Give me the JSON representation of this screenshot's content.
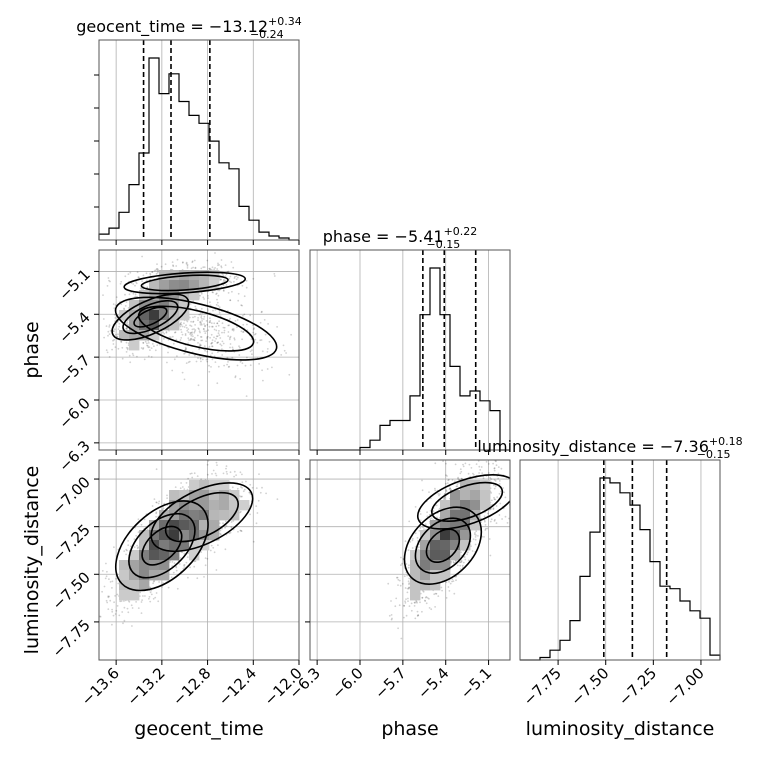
{
  "chart_data": {
    "type": "corner",
    "parameters": [
      "geocent_time",
      "phase",
      "luminosity_distance"
    ],
    "titles": [
      {
        "param": "geocent_time",
        "prefix": "geocent_time = ",
        "median": "−13.12",
        "plus": "+0.34",
        "minus": "−0.24"
      },
      {
        "param": "phase",
        "prefix": "phase = ",
        "median": "−5.41",
        "plus": "+0.22",
        "minus": "−0.15"
      },
      {
        "param": "luminosity_distance",
        "prefix": "luminosity_distance = ",
        "median": "−7.36",
        "plus": "+0.18",
        "minus": "−0.15"
      }
    ],
    "ranges": {
      "geocent_time": [
        -13.75,
        -12.0
      ],
      "phase": [
        -6.35,
        -4.95
      ],
      "luminosity_distance": [
        -7.95,
        -6.9
      ]
    },
    "ticks": {
      "geocent_time": [
        {
          "v": -13.6,
          "label": "−13.6"
        },
        {
          "v": -13.2,
          "label": "−13.2"
        },
        {
          "v": -12.8,
          "label": "−12.8"
        },
        {
          "v": -12.4,
          "label": "−12.4"
        },
        {
          "v": -12.0,
          "label": "−12.0"
        }
      ],
      "phase": [
        {
          "v": -6.3,
          "label": "−6.3"
        },
        {
          "v": -6.0,
          "label": "−6.0"
        },
        {
          "v": -5.7,
          "label": "−5.7"
        },
        {
          "v": -5.4,
          "label": "−5.4"
        },
        {
          "v": -5.1,
          "label": "−5.1"
        }
      ],
      "luminosity_distance": [
        {
          "v": -7.75,
          "label": "−7.75"
        },
        {
          "v": -7.5,
          "label": "−7.50"
        },
        {
          "v": -7.25,
          "label": "−7.25"
        },
        {
          "v": -7.0,
          "label": "−7.00"
        }
      ]
    },
    "quantiles": {
      "geocent_time": [
        -13.36,
        -13.12,
        -12.78
      ],
      "phase": [
        -5.56,
        -5.41,
        -5.19
      ],
      "luminosity_distance": [
        -7.51,
        -7.36,
        -7.18
      ]
    },
    "histograms": {
      "geocent_time": {
        "edges_start": -13.75,
        "bin_width": 0.0875,
        "counts": [
          3,
          6,
          14,
          28,
          44,
          92,
          74,
          84,
          70,
          63,
          59,
          50,
          39,
          36,
          17,
          10,
          4,
          2,
          1,
          0
        ]
      },
      "phase": {
        "edges_start": -6.35,
        "bin_width": 0.07,
        "counts": [
          0,
          0,
          0,
          0,
          0,
          1,
          4,
          10,
          12,
          12,
          22,
          55,
          74,
          55,
          34,
          22,
          24,
          20,
          16,
          0
        ]
      },
      "luminosity_distance": {
        "edges_start": -7.95,
        "bin_width": 0.0525,
        "counts": [
          0,
          0,
          1,
          4,
          8,
          16,
          34,
          52,
          74,
          72,
          68,
          63,
          53,
          40,
          30,
          29,
          24,
          20,
          17,
          2
        ]
      }
    },
    "grid": true,
    "density": {
      "geocent_time|phase": [
        {
          "mean": [
            -13.3,
            -5.42
          ],
          "sd": [
            0.15,
            0.1
          ],
          "rho": 0.55,
          "n": 1100
        },
        {
          "mean": [
            -13.0,
            -5.18
          ],
          "sd": [
            0.22,
            0.06
          ],
          "rho": 0.2,
          "n": 700
        },
        {
          "mean": [
            -12.9,
            -5.5
          ],
          "sd": [
            0.3,
            0.15
          ],
          "rho": -0.4,
          "n": 500
        }
      ],
      "geocent_time|luminosity_distance": [
        {
          "mean": [
            -13.2,
            -7.35
          ],
          "sd": [
            0.2,
            0.15
          ],
          "rho": 0.75,
          "n": 1300
        },
        {
          "mean": [
            -12.85,
            -7.2
          ],
          "sd": [
            0.2,
            0.12
          ],
          "rho": 0.5,
          "n": 700
        }
      ],
      "phase|luminosity_distance": [
        {
          "mean": [
            -5.42,
            -7.35
          ],
          "sd": [
            0.13,
            0.14
          ],
          "rho": 0.7,
          "n": 1500
        },
        {
          "mean": [
            -5.25,
            -7.12
          ],
          "sd": [
            0.15,
            0.1
          ],
          "rho": 0.4,
          "n": 500
        }
      ]
    }
  }
}
